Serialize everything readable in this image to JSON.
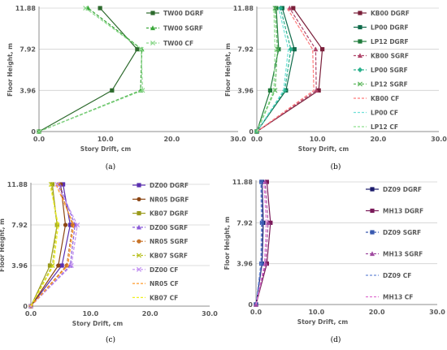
{
  "chart_data": [
    {
      "type": "line",
      "panel_label": "(a)",
      "xlabel": "Story Drift, cm",
      "ylabel": "Floor Height, m",
      "xlim": [
        0,
        30
      ],
      "ylim": [
        0,
        11.88
      ],
      "x_ticks": [
        "0.0",
        "10.0",
        "20.0",
        "30.0"
      ],
      "y_ticks": [
        "0",
        "3.96",
        "7.92",
        "11.88"
      ],
      "legend_position": "top-right",
      "y": [
        0,
        3.96,
        7.92,
        11.88
      ],
      "series": [
        {
          "name": "TW00 DGRF",
          "color": "#2e6b2e",
          "dash": "solid",
          "marker": "square",
          "x": [
            0,
            11.0,
            14.8,
            9.2
          ]
        },
        {
          "name": "TW00 SGRF",
          "color": "#3aa83a",
          "dash": "dash",
          "marker": "triangle",
          "x": [
            0,
            15.3,
            15.5,
            7.4
          ]
        },
        {
          "name": "TW00 CF",
          "color": "#8bd88b",
          "dash": "dash",
          "marker": "x",
          "x": [
            0,
            15.6,
            15.4,
            7.0
          ]
        }
      ]
    },
    {
      "type": "line",
      "panel_label": "(b)",
      "xlabel": "Story Drift, cm",
      "ylabel": "Floor Height, m",
      "xlim": [
        0,
        30
      ],
      "ylim": [
        0,
        11.88
      ],
      "x_ticks": [
        "0.0",
        "10.0",
        "20.0",
        "30.0"
      ],
      "y_ticks": [
        "0",
        "3.96",
        "7.92",
        "11.88"
      ],
      "legend_position": "top-right",
      "y": [
        0,
        3.96,
        7.92,
        11.88
      ],
      "series": [
        {
          "name": "KB00 DGRF",
          "color": "#7a1f3a",
          "dash": "solid",
          "marker": "square",
          "x": [
            0,
            10.2,
            10.8,
            6.0
          ]
        },
        {
          "name": "LP00 DGRF",
          "color": "#0f6b4a",
          "dash": "solid",
          "marker": "square",
          "x": [
            0,
            4.8,
            6.2,
            4.2
          ]
        },
        {
          "name": "LP12 DGRF",
          "color": "#1e7a3a",
          "dash": "solid",
          "marker": "square",
          "x": [
            0,
            2.2,
            3.6,
            3.2
          ]
        },
        {
          "name": "KB00 SGRF",
          "color": "#b0456a",
          "dash": "dash",
          "marker": "triangle",
          "x": [
            0,
            9.8,
            9.7,
            5.4
          ]
        },
        {
          "name": "LP00 SGRF",
          "color": "#2ab08c",
          "dash": "dash",
          "marker": "diamond",
          "x": [
            0,
            4.6,
            5.6,
            3.9
          ]
        },
        {
          "name": "LP12 SGRF",
          "color": "#5fb85f",
          "dash": "dash",
          "marker": "x",
          "x": [
            0,
            3.0,
            3.4,
            3.0
          ]
        },
        {
          "name": "KB00 CF",
          "color": "#ff7a7a",
          "dash": "dash",
          "marker": "none",
          "x": [
            0,
            9.4,
            9.2,
            5.0
          ]
        },
        {
          "name": "LP00 CF",
          "color": "#6fe0d8",
          "dash": "dash",
          "marker": "none",
          "x": [
            0,
            4.4,
            5.2,
            3.6
          ]
        },
        {
          "name": "LP12 CF",
          "color": "#8fe08f",
          "dash": "dash",
          "marker": "none",
          "x": [
            0,
            2.8,
            3.0,
            2.8
          ]
        }
      ]
    },
    {
      "type": "line",
      "panel_label": "(c)",
      "xlabel": "Story Drift, cm",
      "ylabel": "Floor Height, m",
      "xlim": [
        0,
        30
      ],
      "ylim": [
        0,
        11.88
      ],
      "x_ticks": [
        "0.0",
        "10.0",
        "20.0",
        "30.0"
      ],
      "y_ticks": [
        "0",
        "3.96",
        "7.92",
        "11.88"
      ],
      "legend_position": "top-right",
      "y": [
        0,
        3.96,
        7.92,
        11.88
      ],
      "series": [
        {
          "name": "DZ00 DGRF",
          "color": "#5a2fb0",
          "dash": "solid",
          "marker": "square",
          "x": [
            0,
            5.2,
            6.6,
            5.4
          ]
        },
        {
          "name": "NR05 DGRF",
          "color": "#8b4513",
          "dash": "solid",
          "marker": "circle",
          "x": [
            0,
            4.6,
            5.8,
            5.0
          ]
        },
        {
          "name": "KB07 DGRF",
          "color": "#9a9a1a",
          "dash": "solid",
          "marker": "square",
          "x": [
            0,
            3.2,
            4.4,
            3.6
          ]
        },
        {
          "name": "DZ00 SGRF",
          "color": "#8a5ad8",
          "dash": "dash",
          "marker": "triangle",
          "x": [
            0,
            6.6,
            7.4,
            4.8
          ]
        },
        {
          "name": "NR05 SGRF",
          "color": "#c8742a",
          "dash": "dash",
          "marker": "circle",
          "x": [
            0,
            6.0,
            7.0,
            4.6
          ]
        },
        {
          "name": "KB07 SGRF",
          "color": "#b8c020",
          "dash": "dash",
          "marker": "x",
          "x": [
            0,
            3.6,
            4.4,
            3.4
          ]
        },
        {
          "name": "DZ00 CF",
          "color": "#c08ef0",
          "dash": "dash",
          "marker": "x",
          "x": [
            0,
            6.8,
            7.8,
            4.4
          ]
        },
        {
          "name": "NR05 CF",
          "color": "#ff9a2a",
          "dash": "dash",
          "marker": "none",
          "x": [
            0,
            6.2,
            7.2,
            4.2
          ]
        },
        {
          "name": "KB07 CF",
          "color": "#f0f020",
          "dash": "dash",
          "marker": "none",
          "x": [
            0,
            3.8,
            4.6,
            3.2
          ]
        }
      ]
    },
    {
      "type": "line",
      "panel_label": "(d)",
      "xlabel": "Story Drift, cm",
      "ylabel": "Floor Height, m",
      "xlim": [
        0,
        30
      ],
      "ylim": [
        0,
        11.88
      ],
      "x_ticks": [
        "0.0",
        "10.0",
        "20.0",
        "30.0"
      ],
      "y_ticks": [
        "0",
        "3.96",
        "7.92",
        "11.88"
      ],
      "legend_position": "top-right",
      "y": [
        0,
        3.96,
        7.92,
        11.88
      ],
      "series": [
        {
          "name": "DZ09 DGRF",
          "color": "#1a1a6b",
          "dash": "solid",
          "marker": "square",
          "x": [
            0,
            1.0,
            1.2,
            1.0
          ]
        },
        {
          "name": "MH13 DGRF",
          "color": "#7a1a5a",
          "dash": "solid",
          "marker": "square",
          "x": [
            0,
            1.8,
            2.4,
            1.8
          ]
        },
        {
          "name": "DZ09 SGRF",
          "color": "#3a5ab0",
          "dash": "dash",
          "marker": "square",
          "x": [
            0,
            0.9,
            1.0,
            0.9
          ]
        },
        {
          "name": "MH13 SGRF",
          "color": "#a04aa0",
          "dash": "dash",
          "marker": "triangle",
          "x": [
            0,
            1.6,
            2.0,
            1.5
          ]
        },
        {
          "name": "DZ09 CF",
          "color": "#6a8ad8",
          "dash": "dash",
          "marker": "none",
          "x": [
            0,
            0.8,
            0.9,
            0.8
          ]
        },
        {
          "name": "MH13 CF",
          "color": "#e070d0",
          "dash": "dash",
          "marker": "none",
          "x": [
            0,
            1.4,
            1.7,
            1.3
          ]
        }
      ]
    }
  ]
}
